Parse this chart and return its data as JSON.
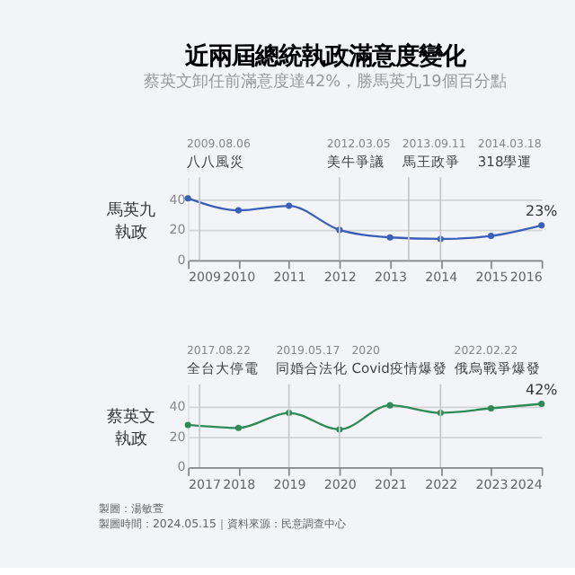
{
  "chart_data": [
    {
      "type": "line",
      "title": "近兩屆總統執政滿意度變化",
      "subtitle": "蔡英文卸任前滿意度達42%，勝馬英九19個百分點",
      "ylabel": "馬英九執政",
      "x": [
        2009,
        2010,
        2011,
        2012,
        2013,
        2014,
        2015,
        2016
      ],
      "series": [
        {
          "color": "#3a5fb8",
          "values": [
            41,
            33,
            36,
            20,
            15,
            14,
            16,
            23
          ],
          "value_labels": [
            null,
            null,
            null,
            null,
            null,
            null,
            null,
            "23%"
          ]
        }
      ],
      "xlim": [
        2009,
        2016
      ],
      "xticks": [
        2009,
        2010,
        2011,
        2012,
        2013,
        2014,
        2015,
        2016
      ],
      "ylim": [
        0,
        55
      ],
      "yticks": [
        0,
        20,
        40
      ],
      "grid": "y",
      "marker": "circle",
      "line_style": "solid",
      "ref_lines": [
        {
          "axis": "x",
          "value": 2009.23,
          "label": "2009.08.06\n八八風災",
          "color": "#c8c8c8"
        },
        {
          "axis": "x",
          "value": 2012.0,
          "label": "2012.03.05\n美牛爭議",
          "color": "#c8c8c8"
        },
        {
          "axis": "x",
          "value": 2013.37,
          "label": "2013.09.11\n馬王政爭",
          "color": "#c8c8c8"
        },
        {
          "axis": "x",
          "value": 2014.0,
          "label": "2014.03.18\n318學運",
          "color": "#c8c8c8"
        }
      ]
    },
    {
      "type": "line",
      "ylabel": "蔡英文執政",
      "x": [
        2017,
        2018,
        2019,
        2020,
        2021,
        2022,
        2023,
        2024
      ],
      "series": [
        {
          "color": "#2e8b57",
          "values": [
            28,
            26,
            36,
            25,
            41,
            36,
            39,
            42
          ],
          "value_labels": [
            null,
            null,
            null,
            null,
            null,
            null,
            null,
            "42%"
          ]
        }
      ],
      "xlim": [
        2017,
        2024
      ],
      "xticks": [
        2017,
        2018,
        2019,
        2020,
        2021,
        2022,
        2023,
        2024
      ],
      "ylim": [
        0,
        55
      ],
      "yticks": [
        0,
        20,
        40
      ],
      "grid": "y",
      "marker": "circle",
      "line_style": "solid",
      "ref_lines": [
        {
          "axis": "x",
          "value": 2017.23,
          "label": "2017.08.22\n全台大停電",
          "color": "#c8c8c8"
        },
        {
          "axis": "x",
          "value": 2019.0,
          "label": "2019.05.17\n同婚合法化",
          "color": "#c8c8c8"
        },
        {
          "axis": "x",
          "value": 2020.0,
          "label": "2020\nCovid疫情爆發",
          "color": "#c8c8c8"
        },
        {
          "axis": "x",
          "value": 2022.0,
          "label": "2022.02.22\n俄烏戰爭爆發",
          "color": "#c8c8c8"
        }
      ],
      "annotations": [
        "製圖：湯敏萱",
        "製圖時間：2024.05.15｜資料來源：民意調查中心"
      ]
    }
  ]
}
